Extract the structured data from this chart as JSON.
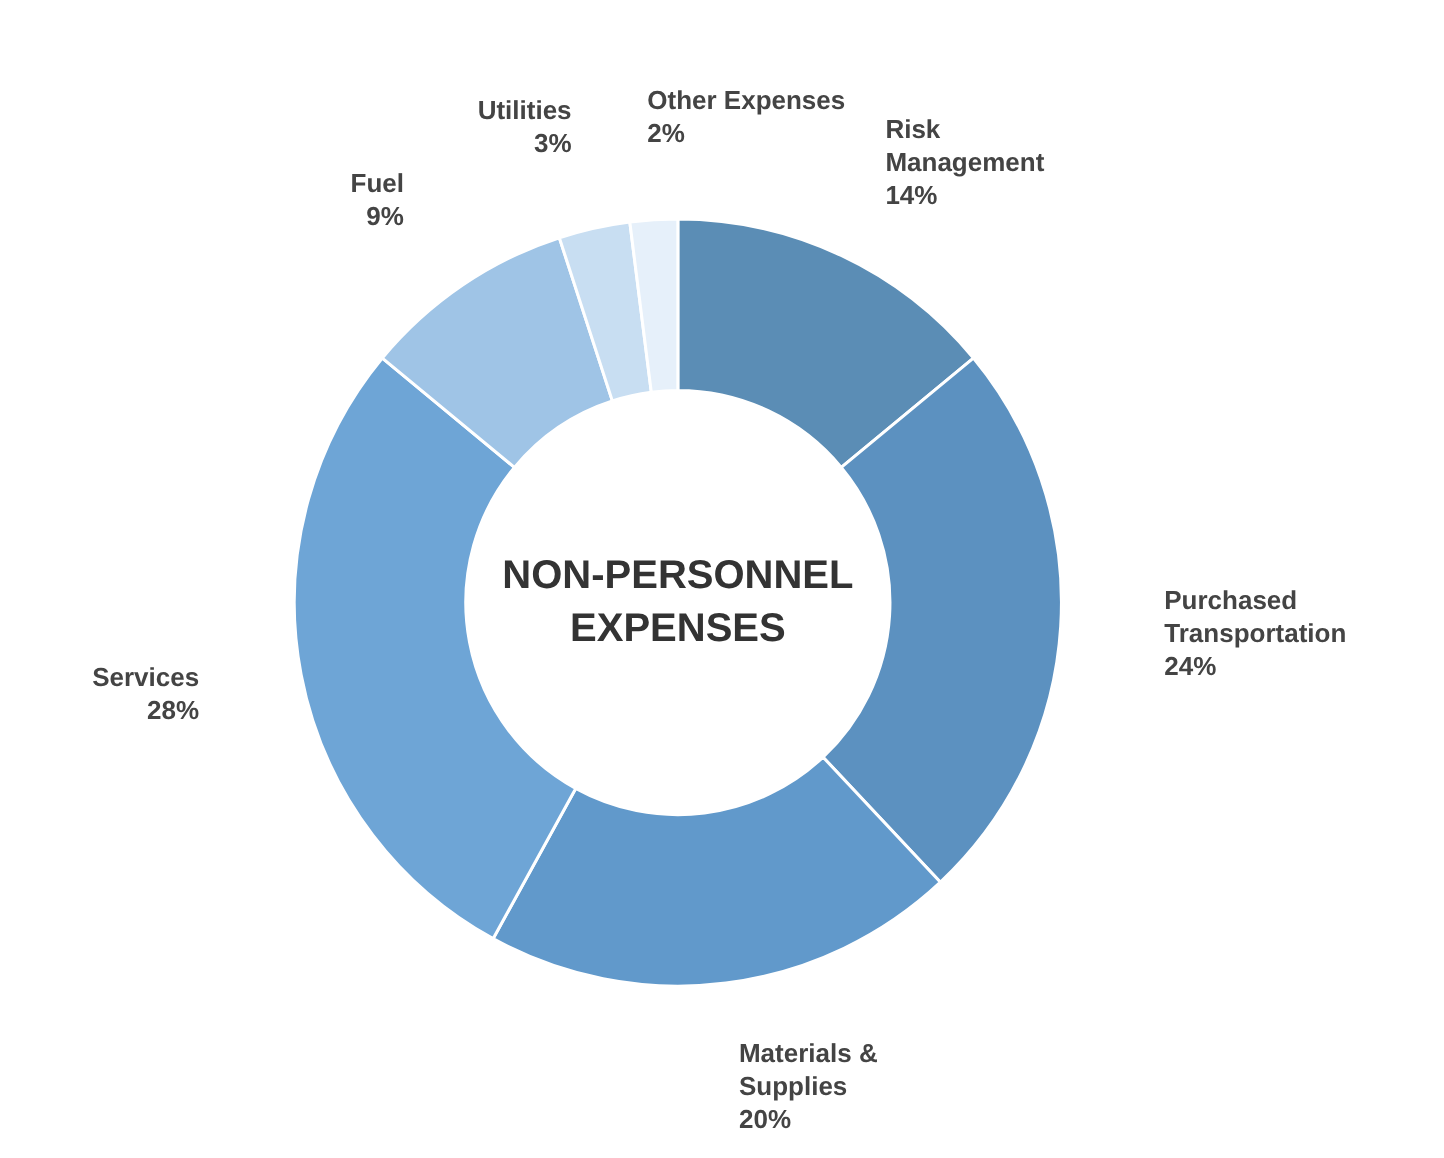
{
  "chart_data": {
    "type": "donut",
    "title": "NON-PERSONNEL EXPENSES",
    "categories": [
      "Risk Management",
      "Purchased Transportation",
      "Materials & Supplies",
      "Services",
      "Fuel",
      "Utilities",
      "Other Expenses"
    ],
    "values": [
      14,
      24,
      20,
      28,
      9,
      3,
      2
    ],
    "value_labels": [
      "14%",
      "24%",
      "20%",
      "28%",
      "9%",
      "3%",
      "2%"
    ],
    "colors": [
      "#5b8db5",
      "#5c91c0",
      "#6199cb",
      "#6ea5d6",
      "#9fc4e6",
      "#c8def2",
      "#e6f0fa"
    ]
  }
}
